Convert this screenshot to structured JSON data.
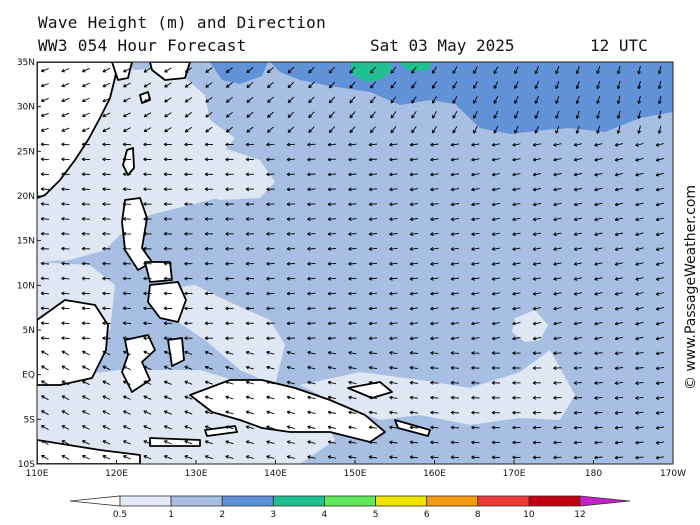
{
  "header": {
    "title": "Wave Height (m) and Direction",
    "model": "WW3 054 Hour Forecast",
    "date": "Sat 03 May 2025",
    "time": "12 UTC"
  },
  "watermark": "© www.PassageWeather.com",
  "axes": {
    "lon_labels": [
      "110E",
      "120E",
      "130E",
      "140E",
      "150E",
      "160E",
      "170E",
      "180",
      "170W"
    ],
    "lat_labels": [
      "35N",
      "30N",
      "25N",
      "20N",
      "15N",
      "10N",
      "5N",
      "EQ",
      "5S",
      "10S"
    ]
  },
  "legend": {
    "ticks": [
      "0.5",
      "1",
      "2",
      "3",
      "4",
      "5",
      "6",
      "8",
      "10",
      "12"
    ],
    "colors": [
      "#e2e9f4",
      "#a6bfe3",
      "#5f8fd6",
      "#1fbf8f",
      "#5fe85a",
      "#f2e400",
      "#f49a10",
      "#ec3a3a",
      "#c00010",
      "#c820c8"
    ]
  },
  "map_colors": {
    "calm": "#dfe7f3",
    "low": "#a6bfe3",
    "moderate": "#6191d7",
    "high": "#20c090",
    "land": "#ffffff",
    "coast": "#000000"
  }
}
